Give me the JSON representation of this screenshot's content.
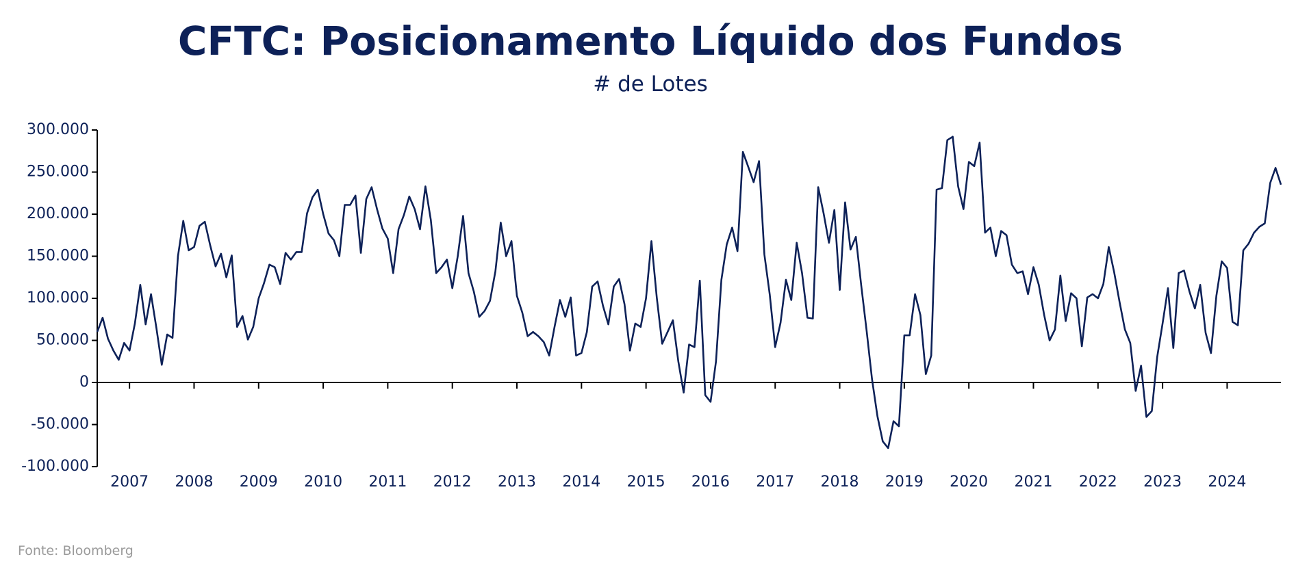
{
  "chart_data": {
    "type": "line",
    "title": "CFTC: Posicionamento Líquido dos Fundos",
    "subtitle": "# de Lotes",
    "source": "Fonte: Bloomberg",
    "color": "#0d2158",
    "ylim": [
      -100000,
      300000
    ],
    "yticks": [
      {
        "value": -100000,
        "label": "-100.000"
      },
      {
        "value": -50000,
        "label": "-50.000"
      },
      0,
      {
        "value": 50000,
        "label": "50.000"
      },
      {
        "value": 100000,
        "label": "100.000"
      },
      {
        "value": 150000,
        "label": "150.000"
      },
      {
        "value": 200000,
        "label": "200.000"
      },
      {
        "value": 250000,
        "label": "250.000"
      },
      {
        "value": 300000,
        "label": "300.000"
      }
    ],
    "categories": [
      null,
      null,
      null,
      null,
      null,
      null,
      "2007",
      null,
      null,
      null,
      null,
      null,
      null,
      null,
      null,
      null,
      null,
      null,
      "2008",
      null,
      null,
      null,
      null,
      null,
      null,
      null,
      null,
      null,
      null,
      null,
      "2009",
      null,
      null,
      null,
      null,
      null,
      null,
      null,
      null,
      null,
      null,
      null,
      "2010",
      null,
      null,
      null,
      null,
      null,
      null,
      null,
      null,
      null,
      null,
      null,
      "2011",
      null,
      null,
      null,
      null,
      null,
      null,
      null,
      null,
      null,
      null,
      null,
      "2012",
      null,
      null,
      null,
      null,
      null,
      null,
      null,
      null,
      null,
      null,
      null,
      "2013",
      null,
      null,
      null,
      null,
      null,
      null,
      null,
      null,
      null,
      null,
      null,
      "2014",
      null,
      null,
      null,
      null,
      null,
      null,
      null,
      null,
      null,
      null,
      null,
      "2015",
      null,
      null,
      null,
      null,
      null,
      null,
      null,
      null,
      null,
      null,
      null,
      "2016",
      null,
      null,
      null,
      null,
      null,
      null,
      null,
      null,
      null,
      null,
      null,
      "2017",
      null,
      null,
      null,
      null,
      null,
      null,
      null,
      null,
      null,
      null,
      null,
      "2018",
      null,
      null,
      null,
      null,
      null,
      null,
      null,
      null,
      null,
      null,
      null,
      "2019",
      null,
      null,
      null,
      null,
      null,
      null,
      null,
      null,
      null,
      null,
      null,
      "2020",
      null,
      null,
      null,
      null,
      null,
      null,
      null,
      null,
      null,
      null,
      null,
      "2021",
      null,
      null,
      null,
      null,
      null,
      null,
      null,
      null,
      null,
      null,
      null,
      "2022",
      null,
      null,
      null,
      null,
      null,
      null,
      null,
      null,
      null,
      null,
      null,
      "2023",
      null,
      null,
      null,
      null,
      null,
      null,
      null,
      null,
      null,
      null,
      null,
      "2024",
      null,
      null,
      null,
      null,
      null,
      null,
      null,
      null,
      null,
      null
    ],
    "values": [
      60000,
      77000,
      52000,
      38000,
      27000,
      47000,
      38000,
      70000,
      116000,
      69000,
      105000,
      65000,
      21000,
      57000,
      53000,
      150000,
      192000,
      157000,
      161000,
      186000,
      191000,
      163000,
      138000,
      153000,
      125000,
      151000,
      66000,
      79000,
      51000,
      66000,
      100000,
      118000,
      140000,
      137000,
      117000,
      154000,
      146000,
      155000,
      155000,
      201000,
      220000,
      229000,
      200000,
      177000,
      169000,
      150000,
      211000,
      211000,
      222000,
      154000,
      218000,
      232000,
      206000,
      183000,
      171000,
      130000,
      182000,
      199000,
      221000,
      206000,
      182000,
      233000,
      193000,
      130000,
      137000,
      146000,
      112000,
      150000,
      198000,
      130000,
      108000,
      78000,
      85000,
      97000,
      132000,
      190000,
      150000,
      168000,
      103000,
      83000,
      55000,
      60000,
      55000,
      48000,
      32000,
      66000,
      98000,
      78000,
      101000,
      32000,
      35000,
      60000,
      114000,
      120000,
      91000,
      69000,
      114000,
      123000,
      93000,
      38000,
      70000,
      66000,
      100000,
      168000,
      101000,
      46000,
      60000,
      74000,
      25000,
      -12000,
      45000,
      42000,
      121000,
      -15000,
      -23000,
      25000,
      122000,
      164000,
      184000,
      156000,
      274000,
      256000,
      238000,
      263000,
      152000,
      104000,
      42000,
      71000,
      122000,
      98000,
      166000,
      130000,
      77000,
      76000,
      232000,
      201000,
      166000,
      205000,
      110000,
      214000,
      158000,
      173000,
      115000,
      61000,
      4000,
      -40000,
      -70000,
      -78000,
      -46000,
      -52000,
      56000,
      56000,
      105000,
      80000,
      10000,
      32000,
      229000,
      231000,
      288000,
      292000,
      233000,
      206000,
      262000,
      257000,
      285000,
      178000,
      184000,
      150000,
      180000,
      175000,
      140000,
      130000,
      132000,
      105000,
      137000,
      116000,
      80000,
      50000,
      63000,
      127000,
      73000,
      106000,
      100000,
      43000,
      101000,
      105000,
      100000,
      117000,
      161000,
      131000,
      96000,
      63000,
      47000,
      -10000,
      20000,
      -41000,
      -34000,
      30000,
      70000,
      112000,
      41000,
      130000,
      133000,
      108000,
      88000,
      116000,
      59000,
      35000,
      103000,
      144000,
      136000,
      72000,
      68000,
      157000,
      165000,
      178000,
      185000,
      189000,
      237000,
      255000,
      235000
    ]
  }
}
